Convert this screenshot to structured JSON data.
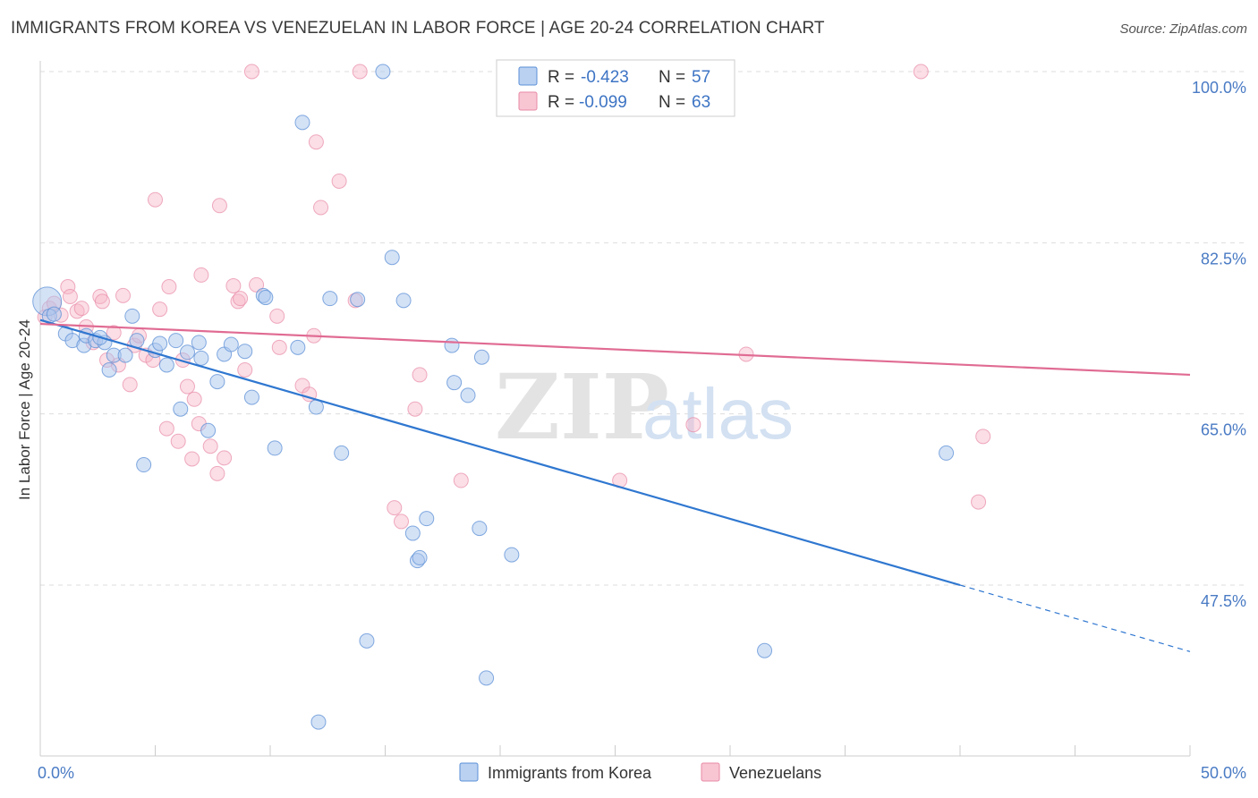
{
  "title": "IMMIGRANTS FROM KOREA VS VENEZUELAN IN LABOR FORCE | AGE 20-24 CORRELATION CHART",
  "source": "Source: ZipAtlas.com",
  "watermark": {
    "zip": "ZIP",
    "atlas": "atlas"
  },
  "legend_top": {
    "r_label": "R =",
    "n_label": "N =",
    "rows": [
      {
        "r": "-0.423",
        "n": "57",
        "color": "#a9c6ee"
      },
      {
        "r": "-0.099",
        "n": "63",
        "color": "#f6b6c8"
      }
    ]
  },
  "chart_data": {
    "type": "scatter",
    "title": "IMMIGRANTS FROM KOREA VS VENEZUELAN IN LABOR FORCE | AGE 20-24 CORRELATION CHART",
    "xlabel": "",
    "ylabel": "In Labor Force | Age 20-24",
    "xlim": [
      0,
      50
    ],
    "ylim": [
      32,
      102
    ],
    "x_tick_labels": [
      {
        "value": 0,
        "label": "0.0%"
      },
      {
        "value": 50,
        "label": "50.0%"
      }
    ],
    "y_tick_labels": [
      {
        "value": 100,
        "label": "100.0%"
      },
      {
        "value": 82.5,
        "label": "82.5%"
      },
      {
        "value": 65,
        "label": "65.0%"
      },
      {
        "value": 47.5,
        "label": "47.5%"
      }
    ],
    "grid": true,
    "legend_position": "bottom",
    "series": [
      {
        "name": "Immigrants from Korea",
        "color": "#a9c6ee",
        "stroke": "#5b8fd6",
        "line_color": "#2f77d0",
        "trend": {
          "x0": 0,
          "y0": 74.6,
          "x1": 40,
          "y1": 47.5,
          "dash_to_x": 50,
          "dash_to_y": 40.7
        },
        "points": [
          [
            0.3,
            76.5
          ],
          [
            0.4,
            75.0
          ],
          [
            0.6,
            75.2
          ],
          [
            1.1,
            73.2
          ],
          [
            1.4,
            72.5
          ],
          [
            1.9,
            72.0
          ],
          [
            2.0,
            73.0
          ],
          [
            2.4,
            72.5
          ],
          [
            2.8,
            72.3
          ],
          [
            3.0,
            69.5
          ],
          [
            3.2,
            71.0
          ],
          [
            3.7,
            71.0
          ],
          [
            4.0,
            75.0
          ],
          [
            4.2,
            72.5
          ],
          [
            4.5,
            59.8
          ],
          [
            5.0,
            71.5
          ],
          [
            5.2,
            72.2
          ],
          [
            5.5,
            70.0
          ],
          [
            5.9,
            72.5
          ],
          [
            6.1,
            65.5
          ],
          [
            6.4,
            71.3
          ],
          [
            6.9,
            72.3
          ],
          [
            7.0,
            70.7
          ],
          [
            7.3,
            63.3
          ],
          [
            7.7,
            68.3
          ],
          [
            8.0,
            71.1
          ],
          [
            8.3,
            72.1
          ],
          [
            8.9,
            71.4
          ],
          [
            9.2,
            66.7
          ],
          [
            9.7,
            77.1
          ],
          [
            9.8,
            76.9
          ],
          [
            10.2,
            61.5
          ],
          [
            11.2,
            71.8
          ],
          [
            11.4,
            94.8
          ],
          [
            12.0,
            65.7
          ],
          [
            12.6,
            76.8
          ],
          [
            13.1,
            61.0
          ],
          [
            13.8,
            76.7
          ],
          [
            14.2,
            41.8
          ],
          [
            14.9,
            100.0
          ],
          [
            15.3,
            81.0
          ],
          [
            15.8,
            76.6
          ],
          [
            16.2,
            52.8
          ],
          [
            16.4,
            50.0
          ],
          [
            16.5,
            50.3
          ],
          [
            16.8,
            54.3
          ],
          [
            17.9,
            72.0
          ],
          [
            18.0,
            68.2
          ],
          [
            18.6,
            66.9
          ],
          [
            19.2,
            70.8
          ],
          [
            19.1,
            53.3
          ],
          [
            19.4,
            38.0
          ],
          [
            20.5,
            50.6
          ],
          [
            31.5,
            40.8
          ],
          [
            39.4,
            61.0
          ],
          [
            12.1,
            33.5
          ],
          [
            2.6,
            72.8
          ]
        ]
      },
      {
        "name": "Venezuelans",
        "color": "#f6b6c8",
        "stroke": "#e88aa6",
        "line_color": "#e06b93",
        "trend": {
          "x0": 0,
          "y0": 74.2,
          "x1": 50,
          "y1": 69.0
        },
        "points": [
          [
            0.2,
            74.9
          ],
          [
            0.4,
            75.8
          ],
          [
            0.6,
            76.3
          ],
          [
            0.9,
            75.1
          ],
          [
            1.2,
            78.0
          ],
          [
            1.3,
            77.0
          ],
          [
            1.6,
            75.5
          ],
          [
            1.8,
            75.8
          ],
          [
            2.0,
            73.9
          ],
          [
            2.3,
            72.3
          ],
          [
            2.6,
            77.0
          ],
          [
            2.7,
            76.5
          ],
          [
            2.9,
            70.5
          ],
          [
            3.2,
            73.3
          ],
          [
            3.4,
            70.0
          ],
          [
            3.6,
            77.1
          ],
          [
            3.9,
            68.0
          ],
          [
            4.1,
            72.0
          ],
          [
            4.3,
            73.0
          ],
          [
            4.6,
            71.0
          ],
          [
            4.9,
            70.5
          ],
          [
            5.0,
            86.9
          ],
          [
            5.2,
            75.7
          ],
          [
            5.5,
            63.5
          ],
          [
            5.6,
            78.0
          ],
          [
            6.0,
            62.2
          ],
          [
            6.2,
            70.5
          ],
          [
            6.4,
            67.8
          ],
          [
            6.6,
            60.4
          ],
          [
            6.7,
            66.5
          ],
          [
            6.9,
            64.0
          ],
          [
            7.0,
            79.2
          ],
          [
            7.4,
            61.7
          ],
          [
            7.7,
            58.9
          ],
          [
            7.8,
            86.3
          ],
          [
            8.0,
            60.5
          ],
          [
            8.4,
            78.1
          ],
          [
            8.6,
            76.5
          ],
          [
            8.7,
            76.8
          ],
          [
            8.9,
            69.5
          ],
          [
            9.2,
            100.0
          ],
          [
            9.4,
            78.2
          ],
          [
            10.3,
            75.0
          ],
          [
            10.4,
            71.8
          ],
          [
            11.4,
            67.9
          ],
          [
            11.7,
            67.0
          ],
          [
            11.9,
            73.0
          ],
          [
            12.0,
            92.8
          ],
          [
            12.2,
            86.1
          ],
          [
            13.0,
            88.8
          ],
          [
            13.7,
            76.6
          ],
          [
            13.9,
            100.0
          ],
          [
            15.4,
            55.4
          ],
          [
            15.7,
            54.0
          ],
          [
            16.3,
            65.5
          ],
          [
            16.5,
            69.0
          ],
          [
            18.3,
            58.2
          ],
          [
            28.4,
            63.9
          ],
          [
            30.7,
            71.1
          ],
          [
            38.3,
            100.0
          ],
          [
            41.0,
            62.7
          ],
          [
            40.8,
            56.0
          ],
          [
            25.2,
            58.2
          ]
        ]
      }
    ]
  },
  "legend_bottom": {
    "items": [
      {
        "label": "Immigrants from Korea"
      },
      {
        "label": "Venezuelans"
      }
    ]
  },
  "colors": {
    "grid": "#dddddd",
    "axis_tick_text": "#4a7bc4",
    "korea_line": "#2f77d0",
    "venezuelan_line": "#e06b93"
  }
}
